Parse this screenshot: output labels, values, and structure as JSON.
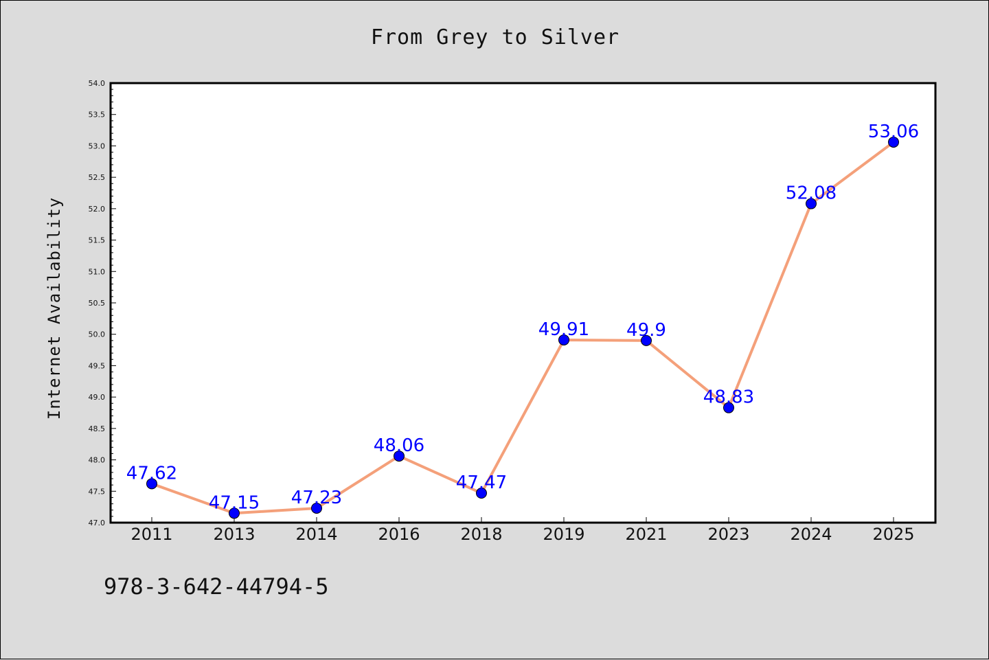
{
  "chart_data": {
    "type": "line",
    "title": "From Grey to Silver",
    "xlabel": "",
    "ylabel": "Internet Availability",
    "categories": [
      "2011",
      "2013",
      "2014",
      "2016",
      "2018",
      "2019",
      "2021",
      "2023",
      "2024",
      "2025"
    ],
    "series": [
      {
        "values": [
          47.62,
          47.15,
          47.23,
          48.06,
          47.47,
          49.91,
          49.9,
          48.83,
          52.08,
          53.06
        ],
        "data_labels": [
          "47.62",
          "47.15",
          "47.23",
          "48.06",
          "47.47",
          "49.91",
          "49.9",
          "48.83",
          "52.08",
          "53.06"
        ],
        "line_color": "#f4a07a",
        "marker_color": "#0000ff",
        "label_color": "#0000ff"
      }
    ],
    "ylim": [
      47.0,
      54.0
    ],
    "yticks": [
      "47.0",
      "47.5",
      "48.0",
      "48.5",
      "49.0",
      "49.5",
      "50.0",
      "50.5",
      "51.0",
      "51.5",
      "52.0",
      "52.5",
      "53.0",
      "53.5",
      "54.0"
    ],
    "grid": false,
    "legend": "none"
  },
  "footer": {
    "isbn": "978-3-642-44794-5"
  },
  "colors": {
    "background": "#dcdcdc",
    "plot_background": "#ffffff",
    "line": "#f4a07a",
    "marker": "#0000ff"
  }
}
